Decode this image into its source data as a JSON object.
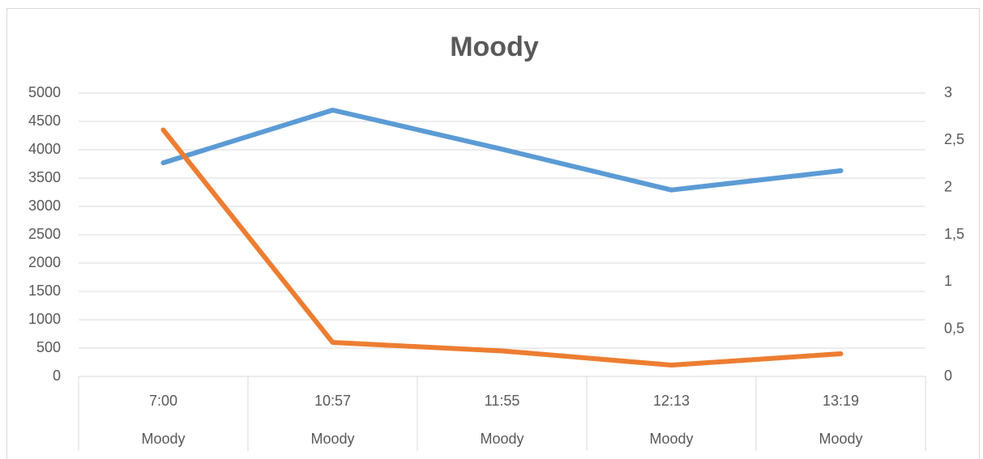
{
  "chart_data": {
    "type": "line",
    "title": "Moody",
    "categories": [
      "7:00",
      "10:57",
      "11:55",
      "12:13",
      "13:19"
    ],
    "category_groups": [
      "Moody",
      "Moody",
      "Moody",
      "Moody",
      "Moody"
    ],
    "series": [
      {
        "color": "#5b9bd5",
        "values": [
          3770,
          4700,
          4010,
          3290,
          3630
        ]
      },
      {
        "color": "#ed7d31",
        "axis": "y2",
        "values": [
          2.61,
          0.36,
          0.27,
          0.12,
          0.24
        ]
      }
    ],
    "ylim": [
      0,
      5000
    ],
    "yticks": [
      0,
      500,
      1000,
      1500,
      2000,
      2500,
      3000,
      3500,
      4000,
      4500,
      5000
    ],
    "y2lim": [
      0,
      3
    ],
    "y2ticks": [
      0,
      {
        "value": 0.5,
        "label": "0,5"
      },
      1,
      {
        "value": 1.5,
        "label": "1,5"
      },
      2,
      {
        "value": 2.5,
        "label": "2,5"
      },
      3
    ],
    "grid": true
  }
}
